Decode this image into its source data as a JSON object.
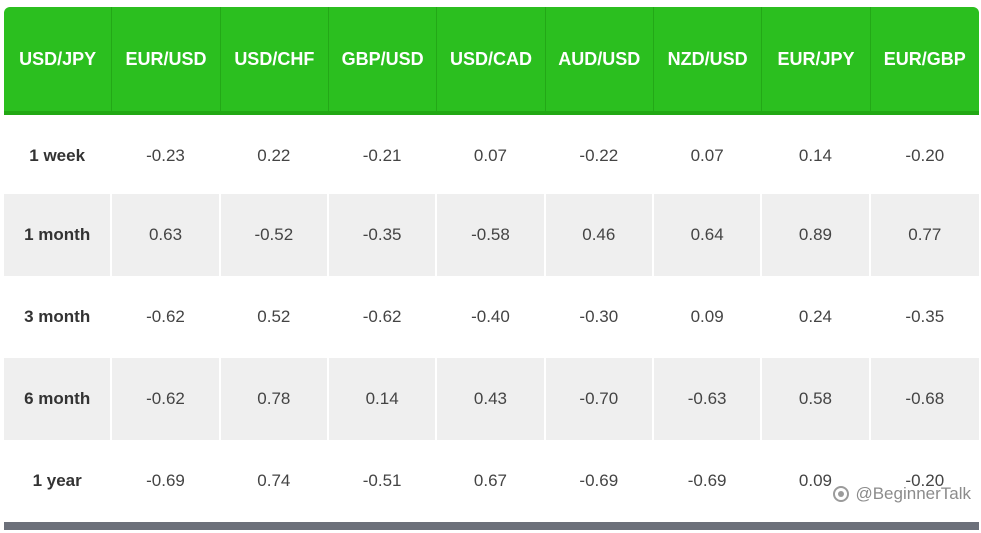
{
  "table": {
    "headers": [
      "USD/JPY",
      "EUR/USD",
      "USD/CHF",
      "GBP/USD",
      "USD/CAD",
      "AUD/USD",
      "NZD/USD",
      "EUR/JPY",
      "EUR/GBP"
    ],
    "rows": [
      {
        "label": "1 week",
        "values": [
          "-0.23",
          "0.22",
          "-0.21",
          "0.07",
          "-0.22",
          "0.07",
          "0.14",
          "-0.20"
        ]
      },
      {
        "label": "1 month",
        "values": [
          "0.63",
          "-0.52",
          "-0.35",
          "-0.58",
          "0.46",
          "0.64",
          "0.89",
          "0.77"
        ]
      },
      {
        "label": "3 month",
        "values": [
          "-0.62",
          "0.52",
          "-0.62",
          "-0.40",
          "-0.30",
          "0.09",
          "0.24",
          "-0.35"
        ]
      },
      {
        "label": "6 month",
        "values": [
          "-0.62",
          "0.78",
          "0.14",
          "0.43",
          "-0.70",
          "-0.63",
          "0.58",
          "-0.68"
        ]
      },
      {
        "label": "1 year",
        "values": [
          "-0.69",
          "0.74",
          "-0.51",
          "0.67",
          "-0.69",
          "-0.69",
          "0.09",
          "-0.20"
        ]
      }
    ]
  },
  "watermark": {
    "text": "@BeginnerTalk",
    "icon": "weibo-logo-icon"
  },
  "colors": {
    "header_bg": "#2bbf1f",
    "alt_row_bg": "#efefef",
    "footer_bar": "#6c707a"
  }
}
